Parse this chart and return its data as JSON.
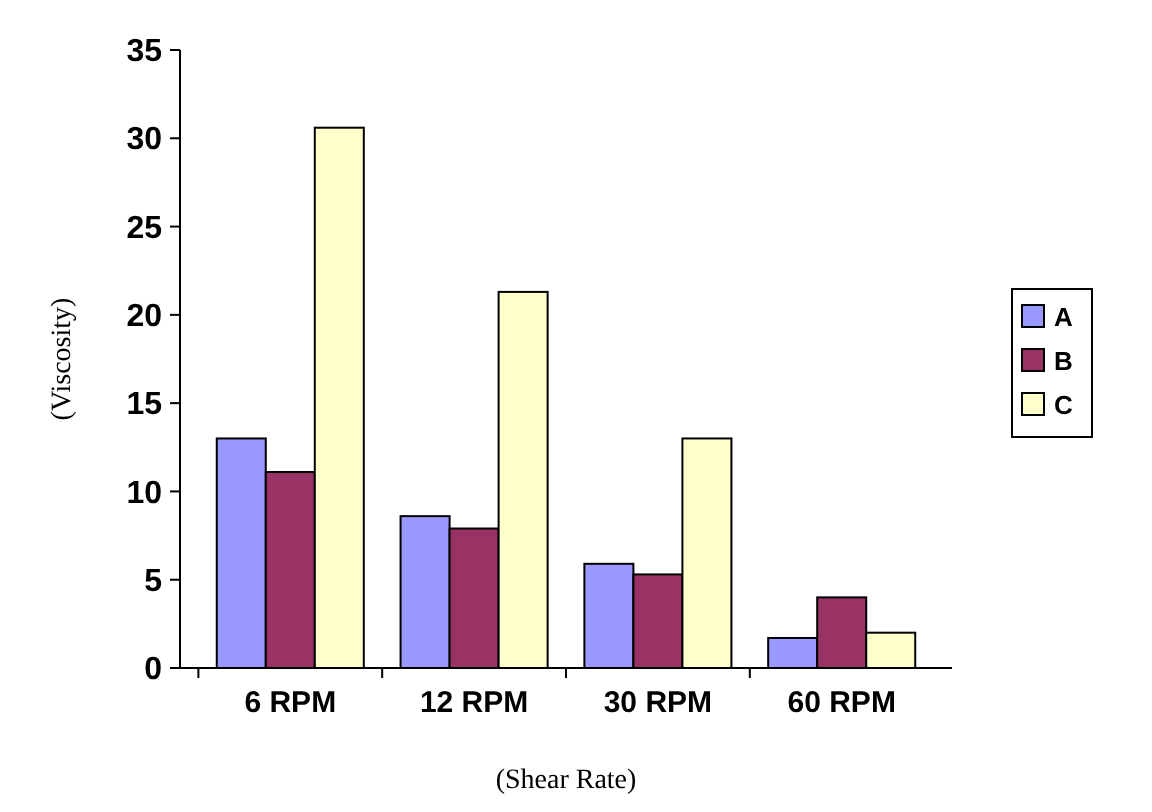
{
  "chart_data": {
    "type": "bar",
    "xlabel": "(Shear Rate)",
    "ylabel": "(Viscosity)",
    "categories": [
      "6 RPM",
      "12 RPM",
      "30 RPM",
      "60 RPM"
    ],
    "series": [
      {
        "name": "A",
        "color": "#9999ff",
        "values": [
          13.0,
          8.6,
          5.9,
          1.7
        ]
      },
      {
        "name": "B",
        "color": "#993366",
        "values": [
          11.1,
          7.9,
          5.3,
          4.0
        ]
      },
      {
        "name": "C",
        "color": "#ffffcc",
        "values": [
          30.6,
          21.3,
          13.0,
          2.0
        ]
      }
    ],
    "ylim": [
      0,
      35
    ],
    "yticks": [
      0,
      5,
      10,
      15,
      20,
      25,
      30,
      35
    ],
    "grid": false,
    "legend": "right"
  }
}
